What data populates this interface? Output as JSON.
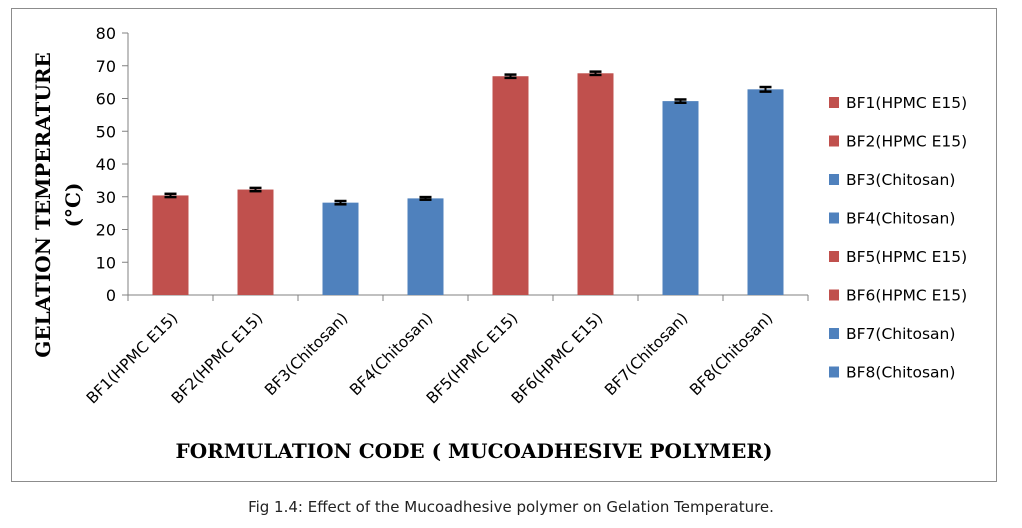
{
  "chart_data": {
    "type": "bar",
    "categories": [
      "BF1(HPMC E15)",
      "BF2(HPMC E15)",
      "BF3(Chitosan)",
      "BF4(Chitosan)",
      "BF5(HPMC E15)",
      "BF6(HPMC E15)",
      "BF7(Chitosan)",
      "BF8(Chitosan)"
    ],
    "values": [
      30.4,
      32.2,
      28.2,
      29.5,
      66.8,
      67.7,
      59.2,
      62.8
    ],
    "errors": [
      0.5,
      0.5,
      0.5,
      0.4,
      0.5,
      0.5,
      0.5,
      0.7
    ],
    "bar_colors": [
      "#C0504D",
      "#C0504D",
      "#4F81BD",
      "#4F81BD",
      "#C0504D",
      "#C0504D",
      "#4F81BD",
      "#4F81BD"
    ],
    "legend": [
      "BF1(HPMC E15)",
      "BF2(HPMC E15)",
      "BF3(Chitosan)",
      "BF4(Chitosan)",
      "BF5(HPMC E15)",
      "BF6(HPMC E15)",
      "BF7(Chitosan)",
      "BF8(Chitosan)"
    ],
    "legend_position": "right",
    "ylabel_line1": "GELATION TEMPERATURE",
    "ylabel_line2": "(°C)",
    "xlabel": "FORMULATION CODE ( MUCOADHESIVE POLYMER)",
    "ylim": [
      0,
      80
    ],
    "yticks": [
      0,
      10,
      20,
      30,
      40,
      50,
      60,
      70,
      80
    ],
    "grid": false
  },
  "caption": "Fig 1.4: Effect of the Mucoadhesive polymer on Gelation Temperature."
}
